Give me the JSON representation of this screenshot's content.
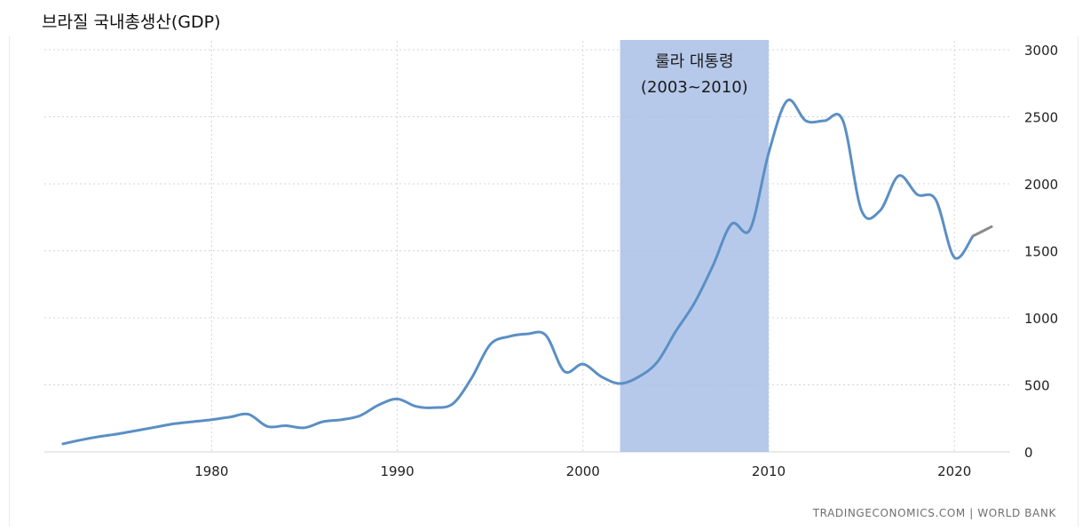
{
  "title": "브라질 국내총생산(GDP)",
  "source": "TRADINGECONOMICS.COM  |  WORLD BANK",
  "chart_data": {
    "type": "line",
    "title": "브라질 국내총생산(GDP)",
    "xlabel": "",
    "ylabel": "",
    "xlim": [
      1971,
      2023
    ],
    "ylim": [
      0,
      3000
    ],
    "x_ticks": [
      1980,
      1990,
      2000,
      2010,
      2020
    ],
    "y_ticks": [
      0,
      500,
      1000,
      1500,
      2000,
      2500,
      3000
    ],
    "grid": true,
    "y_axis_position": "right",
    "line_color": "#5b8fc4",
    "forecast_color": "#8a8a8a",
    "shaded_region": {
      "x_start": 2002,
      "x_end": 2010,
      "color": "#a9c0e6",
      "label_line1": "룰라 대통령",
      "label_line2": "(2003~2010)"
    },
    "series": [
      {
        "x": [
          1972,
          1973,
          1974,
          1975,
          1976,
          1977,
          1978,
          1979,
          1980,
          1981,
          1982,
          1983,
          1984,
          1985,
          1986,
          1987,
          1988,
          1989,
          1990,
          1991,
          1992,
          1993,
          1994,
          1995,
          1996,
          1997,
          1998,
          1999,
          2000,
          2001,
          2002,
          2003,
          2004,
          2005,
          2006,
          2007,
          2008,
          2009,
          2010,
          2011,
          2012,
          2013,
          2014,
          2015,
          2016,
          2017,
          2018,
          2019,
          2020,
          2021
        ],
        "values": [
          60,
          90,
          115,
          135,
          160,
          185,
          210,
          225,
          240,
          260,
          280,
          190,
          195,
          180,
          225,
          240,
          270,
          350,
          395,
          340,
          330,
          360,
          550,
          800,
          860,
          880,
          870,
          600,
          655,
          560,
          510,
          560,
          670,
          900,
          1110,
          1390,
          1700,
          1660,
          2230,
          2620,
          2470,
          2470,
          2470,
          1800,
          1800,
          2060,
          1920,
          1880,
          1450,
          1610
        ]
      },
      {
        "x": [
          2021,
          2022
        ],
        "values": [
          1610,
          1680
        ],
        "forecast": true
      }
    ]
  }
}
